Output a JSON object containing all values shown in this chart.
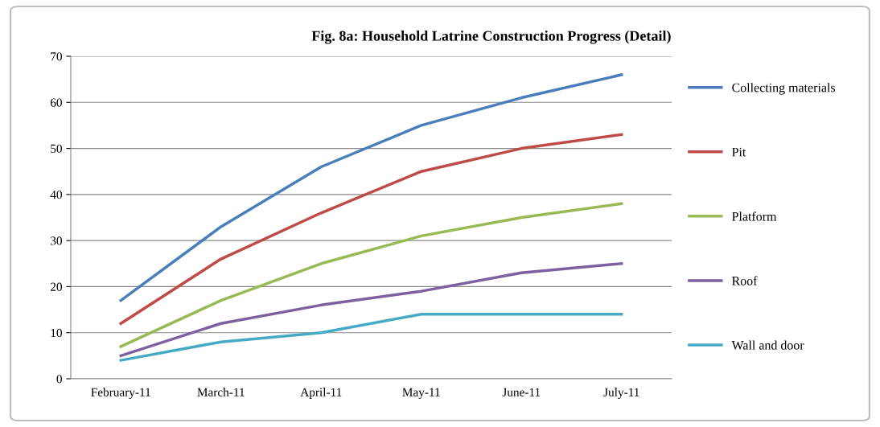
{
  "chart_data": {
    "type": "line",
    "title": "Fig. 8a: Household Latrine Construction Progress (Detail)",
    "categories": [
      "February-11",
      "March-11",
      "April-11",
      "May-11",
      "June-11",
      "July-11"
    ],
    "series": [
      {
        "name": "Collecting materials",
        "color": "#4a7ebb",
        "values": [
          17,
          33,
          46,
          55,
          61,
          66
        ]
      },
      {
        "name": "Pit",
        "color": "#be4b48",
        "values": [
          12,
          26,
          36,
          45,
          50,
          53
        ]
      },
      {
        "name": "Platform",
        "color": "#98b954",
        "values": [
          7,
          17,
          25,
          31,
          35,
          38
        ]
      },
      {
        "name": "Roof",
        "color": "#7d60a0",
        "values": [
          5,
          12,
          16,
          19,
          23,
          25
        ]
      },
      {
        "name": "Wall and door",
        "color": "#46aac5",
        "values": [
          4,
          8,
          10,
          14,
          14,
          14
        ]
      }
    ],
    "ylim": [
      0,
      70
    ],
    "yticks": [
      0,
      10,
      20,
      30,
      40,
      50,
      60,
      70
    ],
    "grid": "y",
    "legend": "right",
    "marker": "none",
    "line_style": "solid"
  }
}
